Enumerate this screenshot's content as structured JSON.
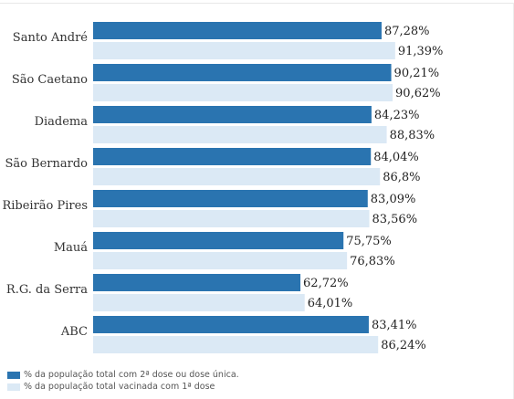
{
  "chart_data": {
    "type": "bar",
    "orientation": "horizontal",
    "categories": [
      "Santo André",
      "São Caetano",
      "Diadema",
      "São Bernardo",
      "Ribeirão Pires",
      "Mauá",
      "R.G. da Serra",
      "ABC"
    ],
    "series": [
      {
        "name": "% da população total com 2ª dose ou dose única.",
        "color": "#2a74b0",
        "values": [
          87.28,
          90.21,
          84.23,
          84.04,
          83.09,
          75.75,
          62.72,
          83.41
        ],
        "labels": [
          "87,28%",
          "90,21%",
          "84,23%",
          "84,04%",
          "83,09%",
          "75,75%",
          "62,72%",
          "83,41%"
        ]
      },
      {
        "name": "% da população total vacinada com 1ª dose",
        "color": "#dbe9f5",
        "values": [
          91.39,
          90.62,
          88.83,
          86.8,
          83.56,
          76.83,
          64.01,
          86.24
        ],
        "labels": [
          "91,39%",
          "90,62%",
          "88,83%",
          "86,8%",
          "83,56%",
          "76,83%",
          "64,01%",
          "86,24%"
        ]
      }
    ],
    "xlim": [
      0,
      100
    ],
    "grid": false,
    "legend_position": "bottom-left"
  }
}
